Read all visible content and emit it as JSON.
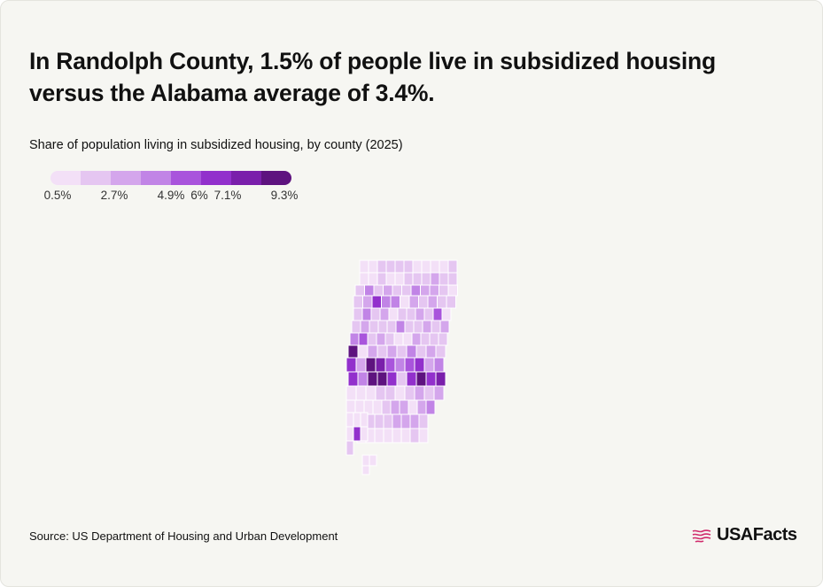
{
  "header": {
    "title": "In Randolph County, 1.5% of people live in subsidized housing versus the Alabama average of 3.4%.",
    "subtitle": "Share of population living in subsidized housing, by county (2025)"
  },
  "legend": {
    "colors": [
      "#f3e0f7",
      "#e5c6f1",
      "#d4a6ec",
      "#c184e6",
      "#a954dc",
      "#9230cc",
      "#7a1fab",
      "#5e137f"
    ],
    "ticks": [
      "0.5%",
      "2.7%",
      "4.9%",
      "6%",
      "7.1%",
      "9.3%"
    ],
    "tick_values": [
      0.5,
      2.7,
      4.9,
      6,
      7.1,
      9.3
    ],
    "range": [
      0.5,
      9.3
    ]
  },
  "map": {
    "region": "Alabama counties",
    "highlight": "Randolph County",
    "highlight_value": 1.5,
    "state_average": 3.4
  },
  "footer": {
    "source": "Source: US Department of Housing and Urban Development",
    "logo_text": "USAFacts"
  }
}
